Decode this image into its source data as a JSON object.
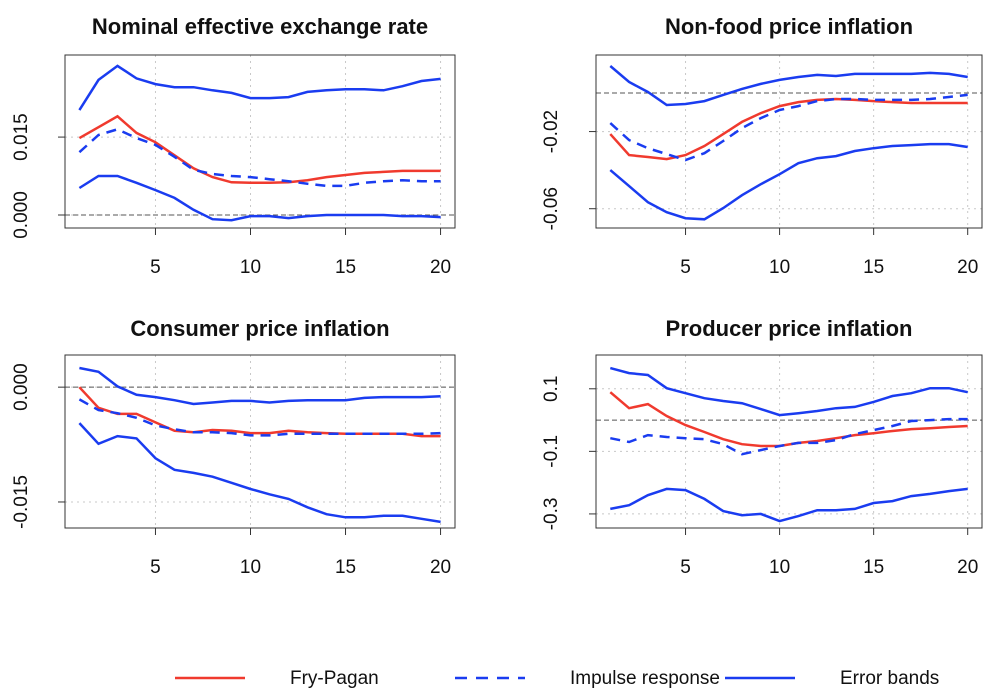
{
  "chart_data": [
    {
      "type": "line",
      "title": "Nominal effective exchange rate",
      "x": [
        1,
        2,
        3,
        4,
        5,
        6,
        7,
        8,
        9,
        10,
        11,
        12,
        13,
        14,
        15,
        16,
        17,
        18,
        19,
        20
      ],
      "xlim": [
        0.24,
        20.76
      ],
      "xticks": [
        5,
        10,
        15,
        20
      ],
      "ylim": [
        -0.0025,
        0.0308
      ],
      "yticks": [
        {
          "value": 0,
          "label": "0.000"
        },
        {
          "value": 0.015,
          "label": "0.015"
        }
      ],
      "grid": true,
      "hline": 0,
      "series": [
        {
          "color": "#f03a2e",
          "dash": false,
          "values": [
            0.0148,
            0.0169,
            0.019,
            0.0158,
            0.014,
            0.0115,
            0.009,
            0.0073,
            0.0063,
            0.0062,
            0.0062,
            0.0063,
            0.0067,
            0.0073,
            0.0077,
            0.0081,
            0.0083,
            0.0085,
            0.0085,
            0.0085
          ]
        },
        {
          "color": "#1a3cf0",
          "dash": true,
          "values": [
            0.0121,
            0.0154,
            0.0165,
            0.0148,
            0.0135,
            0.0112,
            0.0087,
            0.0079,
            0.0075,
            0.0073,
            0.0069,
            0.0065,
            0.006,
            0.0056,
            0.0056,
            0.0062,
            0.0065,
            0.0067,
            0.0065,
            0.0065
          ]
        },
        {
          "color": "#1a3cf0",
          "dash": false,
          "values": [
            0.0202,
            0.026,
            0.0287,
            0.0263,
            0.0252,
            0.0246,
            0.0246,
            0.024,
            0.0235,
            0.0225,
            0.0225,
            0.0227,
            0.0237,
            0.024,
            0.0242,
            0.0242,
            0.024,
            0.0248,
            0.0258,
            0.0262
          ]
        },
        {
          "color": "#1a3cf0",
          "dash": false,
          "values": [
            0.0052,
            0.0075,
            0.0075,
            0.0062,
            0.0048,
            0.0033,
            0.001,
            -0.0008,
            -0.001,
            -0.0002,
            -0.0002,
            -0.0006,
            -0.0002,
            0,
            0,
            0,
            0,
            -0.0002,
            -0.0002,
            -0.0004
          ]
        }
      ]
    },
    {
      "type": "line",
      "title": "Non-food price inflation",
      "x": [
        1,
        2,
        3,
        4,
        5,
        6,
        7,
        8,
        9,
        10,
        11,
        12,
        13,
        14,
        15,
        16,
        17,
        18,
        19,
        20
      ],
      "xlim": [
        0.24,
        20.76
      ],
      "xticks": [
        5,
        10,
        15,
        20
      ],
      "ylim": [
        -0.07,
        0.0197
      ],
      "yticks": [
        -0.02,
        -0.06
      ],
      "grid": true,
      "hline": 0,
      "series": [
        {
          "color": "#f03a2e",
          "dash": false,
          "values": [
            -0.0213,
            -0.0322,
            -0.0332,
            -0.0343,
            -0.0322,
            -0.0275,
            -0.0213,
            -0.015,
            -0.0104,
            -0.0068,
            -0.0047,
            -0.0036,
            -0.0031,
            -0.0036,
            -0.0042,
            -0.0047,
            -0.0052,
            -0.0052,
            -0.0052,
            -0.0052
          ]
        },
        {
          "color": "#1a3cf0",
          "dash": true,
          "values": [
            -0.0156,
            -0.0244,
            -0.0286,
            -0.0317,
            -0.0348,
            -0.0312,
            -0.0249,
            -0.0182,
            -0.013,
            -0.0088,
            -0.0068,
            -0.0042,
            -0.0031,
            -0.0031,
            -0.0036,
            -0.0036,
            -0.0036,
            -0.0031,
            -0.0021,
            -0.001
          ]
        },
        {
          "color": "#1a3cf0",
          "dash": false,
          "values": [
            0.014,
            0.0057,
            0.0005,
            -0.0062,
            -0.0057,
            -0.0042,
            -0.001,
            0.0021,
            0.0047,
            0.0068,
            0.0083,
            0.0094,
            0.0088,
            0.0099,
            0.0099,
            0.0099,
            0.0099,
            0.0104,
            0.0099,
            0.0083
          ]
        },
        {
          "color": "#1a3cf0",
          "dash": false,
          "values": [
            -0.04,
            -0.0483,
            -0.0566,
            -0.0618,
            -0.0649,
            -0.0655,
            -0.0597,
            -0.053,
            -0.0473,
            -0.0421,
            -0.0364,
            -0.0338,
            -0.0327,
            -0.0301,
            -0.0286,
            -0.0275,
            -0.027,
            -0.0265,
            -0.0265,
            -0.028
          ]
        }
      ]
    },
    {
      "type": "line",
      "title": "Consumer price inflation",
      "x": [
        1,
        2,
        3,
        4,
        5,
        6,
        7,
        8,
        9,
        10,
        11,
        12,
        13,
        14,
        15,
        16,
        17,
        18,
        19,
        20
      ],
      "xlim": [
        0.24,
        20.76
      ],
      "xticks": [
        5,
        10,
        15,
        20
      ],
      "ylim": [
        -0.0184,
        0.0042
      ],
      "yticks": [
        {
          "value": 0,
          "label": "0.000"
        },
        {
          "value": -0.015,
          "label": "-0.015"
        }
      ],
      "grid": true,
      "hline": 0,
      "series": [
        {
          "color": "#f03a2e",
          "dash": false,
          "values": [
            0,
            -0.0027,
            -0.0035,
            -0.0035,
            -0.0046,
            -0.0057,
            -0.0059,
            -0.0056,
            -0.0057,
            -0.006,
            -0.006,
            -0.0057,
            -0.0059,
            -0.006,
            -0.0061,
            -0.0061,
            -0.0061,
            -0.0061,
            -0.0064,
            -0.0064
          ]
        },
        {
          "color": "#1a3cf0",
          "dash": true,
          "values": [
            -0.0016,
            -0.003,
            -0.0034,
            -0.004,
            -0.005,
            -0.0055,
            -0.0059,
            -0.0059,
            -0.006,
            -0.0063,
            -0.0063,
            -0.0061,
            -0.0061,
            -0.0061,
            -0.0061,
            -0.0061,
            -0.0061,
            -0.0061,
            -0.0061,
            -0.006
          ]
        },
        {
          "color": "#1a3cf0",
          "dash": false,
          "values": [
            0.0025,
            0.002,
            0.0001,
            -0.001,
            -0.0013,
            -0.0017,
            -0.0022,
            -0.002,
            -0.0018,
            -0.0018,
            -0.002,
            -0.0018,
            -0.0017,
            -0.0017,
            -0.0017,
            -0.0014,
            -0.0013,
            -0.0013,
            -0.0013,
            -0.0012
          ]
        },
        {
          "color": "#1a3cf0",
          "dash": false,
          "values": [
            -0.0047,
            -0.0074,
            -0.0064,
            -0.0067,
            -0.0093,
            -0.0108,
            -0.0112,
            -0.0117,
            -0.0125,
            -0.0133,
            -0.014,
            -0.0146,
            -0.0157,
            -0.0166,
            -0.017,
            -0.017,
            -0.0168,
            -0.0168,
            -0.0172,
            -0.0176
          ]
        }
      ]
    },
    {
      "type": "line",
      "title": "Producer price inflation",
      "x": [
        1,
        2,
        3,
        4,
        5,
        6,
        7,
        8,
        9,
        10,
        11,
        12,
        13,
        14,
        15,
        16,
        17,
        18,
        19,
        20
      ],
      "xlim": [
        0.24,
        20.76
      ],
      "xticks": [
        5,
        10,
        15,
        20
      ],
      "ylim": [
        -0.345,
        0.208
      ],
      "yticks": [
        0.1,
        -0.1,
        -0.3
      ],
      "grid": true,
      "hline": 0,
      "series": [
        {
          "color": "#f03a2e",
          "dash": false,
          "values": [
            0.089,
            0.038,
            0.051,
            0.013,
            -0.016,
            -0.038,
            -0.061,
            -0.077,
            -0.083,
            -0.083,
            -0.073,
            -0.067,
            -0.058,
            -0.048,
            -0.042,
            -0.035,
            -0.029,
            -0.026,
            -0.022,
            -0.019
          ]
        },
        {
          "color": "#1a3cf0",
          "dash": true,
          "values": [
            -0.058,
            -0.07,
            -0.048,
            -0.054,
            -0.058,
            -0.061,
            -0.077,
            -0.109,
            -0.096,
            -0.083,
            -0.073,
            -0.073,
            -0.064,
            -0.045,
            -0.032,
            -0.019,
            -0.003,
            0,
            0.003,
            0.003
          ]
        },
        {
          "color": "#1a3cf0",
          "dash": false,
          "values": [
            0.166,
            0.15,
            0.144,
            0.102,
            0.086,
            0.07,
            0.061,
            0.054,
            0.035,
            0.016,
            0.022,
            0.029,
            0.038,
            0.042,
            0.058,
            0.077,
            0.086,
            0.102,
            0.102,
            0.089
          ]
        },
        {
          "color": "#1a3cf0",
          "dash": false,
          "values": [
            -0.284,
            -0.272,
            -0.24,
            -0.22,
            -0.224,
            -0.252,
            -0.291,
            -0.304,
            -0.3,
            -0.323,
            -0.307,
            -0.288,
            -0.288,
            -0.284,
            -0.265,
            -0.259,
            -0.243,
            -0.236,
            -0.227,
            -0.22
          ]
        }
      ]
    }
  ],
  "legend": [
    {
      "name": "Fry-Pagan",
      "color": "#f03a2e",
      "dash": false
    },
    {
      "name": "Impulse response",
      "color": "#1a3cf0",
      "dash": true
    },
    {
      "name": "Error bands",
      "color": "#1a3cf0",
      "dash": false
    }
  ]
}
